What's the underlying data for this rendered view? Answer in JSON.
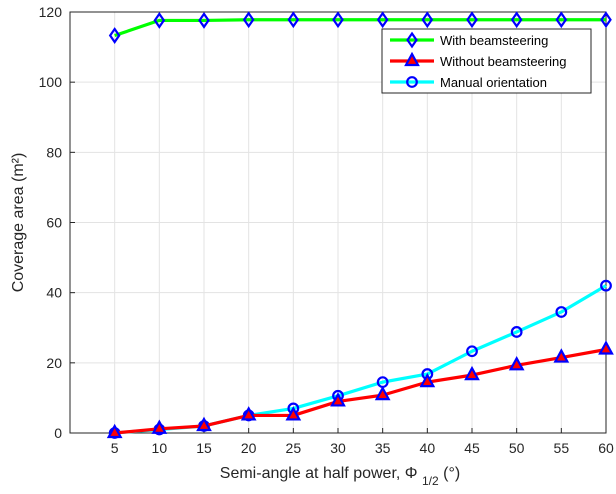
{
  "chart_data": {
    "type": "line",
    "x": [
      5,
      10,
      15,
      20,
      25,
      30,
      35,
      40,
      45,
      50,
      55,
      60
    ],
    "xticks": [
      "5",
      "10",
      "15",
      "20",
      "25",
      "30",
      "35",
      "40",
      "45",
      "50",
      "55",
      "60"
    ],
    "yticks": [
      "0",
      "20",
      "40",
      "60",
      "80",
      "100",
      "120"
    ],
    "xlim": [
      0,
      60
    ],
    "ylim": [
      0,
      120
    ],
    "grid": true,
    "legend_position": "top-right",
    "xlabel_main": "Semi-angle at half power,",
    "xlabel_symbol": "Φ",
    "xlabel_subscript": "1/2",
    "xlabel_unit": " (°)",
    "ylabel": "Coverage area (m²)",
    "series": [
      {
        "name": "With beamsteering",
        "color": "#00ff00",
        "marker": "diamond",
        "values": [
          113.3,
          117.6,
          117.6,
          117.8,
          117.8,
          117.8,
          117.8,
          117.8,
          117.8,
          117.8,
          117.8,
          117.8
        ]
      },
      {
        "name": "Without beamsteering",
        "color": "#ff0000",
        "marker": "triangle",
        "values": [
          0,
          1.2,
          2.0,
          5.0,
          5.0,
          9.0,
          10.8,
          14.5,
          16.5,
          19.3,
          21.5,
          23.8
        ]
      },
      {
        "name": "Manual orientation",
        "color": "#00ffff",
        "marker": "circle",
        "values": [
          0,
          1.0,
          2.0,
          5.0,
          7.0,
          10.6,
          14.5,
          16.8,
          23.3,
          28.8,
          34.5,
          42.0
        ]
      }
    ]
  }
}
